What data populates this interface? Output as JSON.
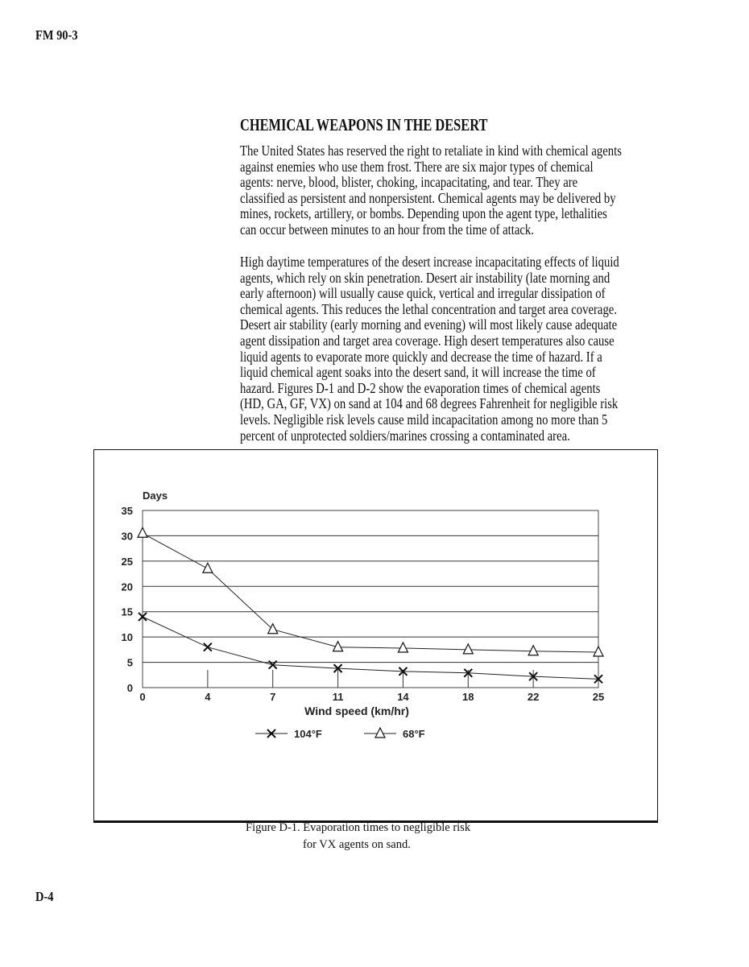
{
  "header": {
    "code": "FM 90-3"
  },
  "section": {
    "title": "CHEMICAL WEAPONS IN THE DESERT",
    "paragraph1": [
      "The United States has reserved the right to retaliate in kind with chemical agents",
      "against enemies who use them frost.   There are six major types of chemical",
      "agents: nerve, blood, blister, choking, incapacitating, and tear.    They are",
      "classified as persistent and nonpersistent. Chemical agents may be delivered by",
      "mines, rockets, artillery, or bombs. Depending upon the agent type, lethalities",
      "can occur between minutes to an hour from the time of attack."
    ],
    "paragraph2": [
      "High daytime temperatures of the desert increase incapacitating effects of liquid",
      "agents, which rely on skin penetration.  Desert air instability (late morning and",
      "early afternoon) will usually cause quick, vertical and irregular dissipation of",
      "chemical agents. This reduces the lethal concentration and target area coverage.",
      "Desert air stability (early morning and evening) will most likely cause adequate",
      "agent dissipation and target area coverage. High desert temperatures also cause",
      "liquid agents to evaporate more quickly and decrease the time of hazard. If a",
      "liquid chemical agent soaks into the desert sand, it will increase the time of",
      "hazard. Figures D-1 and D-2 show the evaporation times of chemical agents",
      "(HD, GA, GF, VX) on sand at 104 and 68 degrees Fahrenheit for negligible risk",
      "levels. Negligible risk levels cause mild incapacitation among no more than 5",
      "percent of unprotected soldiers/marines crossing a contaminated area."
    ]
  },
  "figure": {
    "caption": [
      "Figure D-1. Evaporation times to negligible risk",
      "for VX agents on sand."
    ]
  },
  "footer": {
    "page": "D-4"
  },
  "chart_data": {
    "type": "line",
    "ylabel": "Days",
    "xlabel": "Wind speed (km/hr)",
    "categories": [
      "0",
      "4",
      "7",
      "11",
      "14",
      "18",
      "22",
      "25"
    ],
    "ylim": [
      0,
      35
    ],
    "yticks": [
      "0",
      "5",
      "10",
      "15",
      "20",
      "25",
      "30",
      "35"
    ],
    "grid": true,
    "legend_position": "bottom",
    "series": [
      {
        "name": "104°F",
        "marker": "x",
        "values": [
          14,
          8,
          4.5,
          3.8,
          3.2,
          2.9,
          2.2,
          1.7
        ]
      },
      {
        "name": "68°F",
        "marker": "triangle",
        "values": [
          30.5,
          23.5,
          11.5,
          8,
          7.8,
          7.5,
          7.2,
          7
        ]
      }
    ],
    "colors": {
      "line": "#222222",
      "grid": "#333333"
    }
  }
}
